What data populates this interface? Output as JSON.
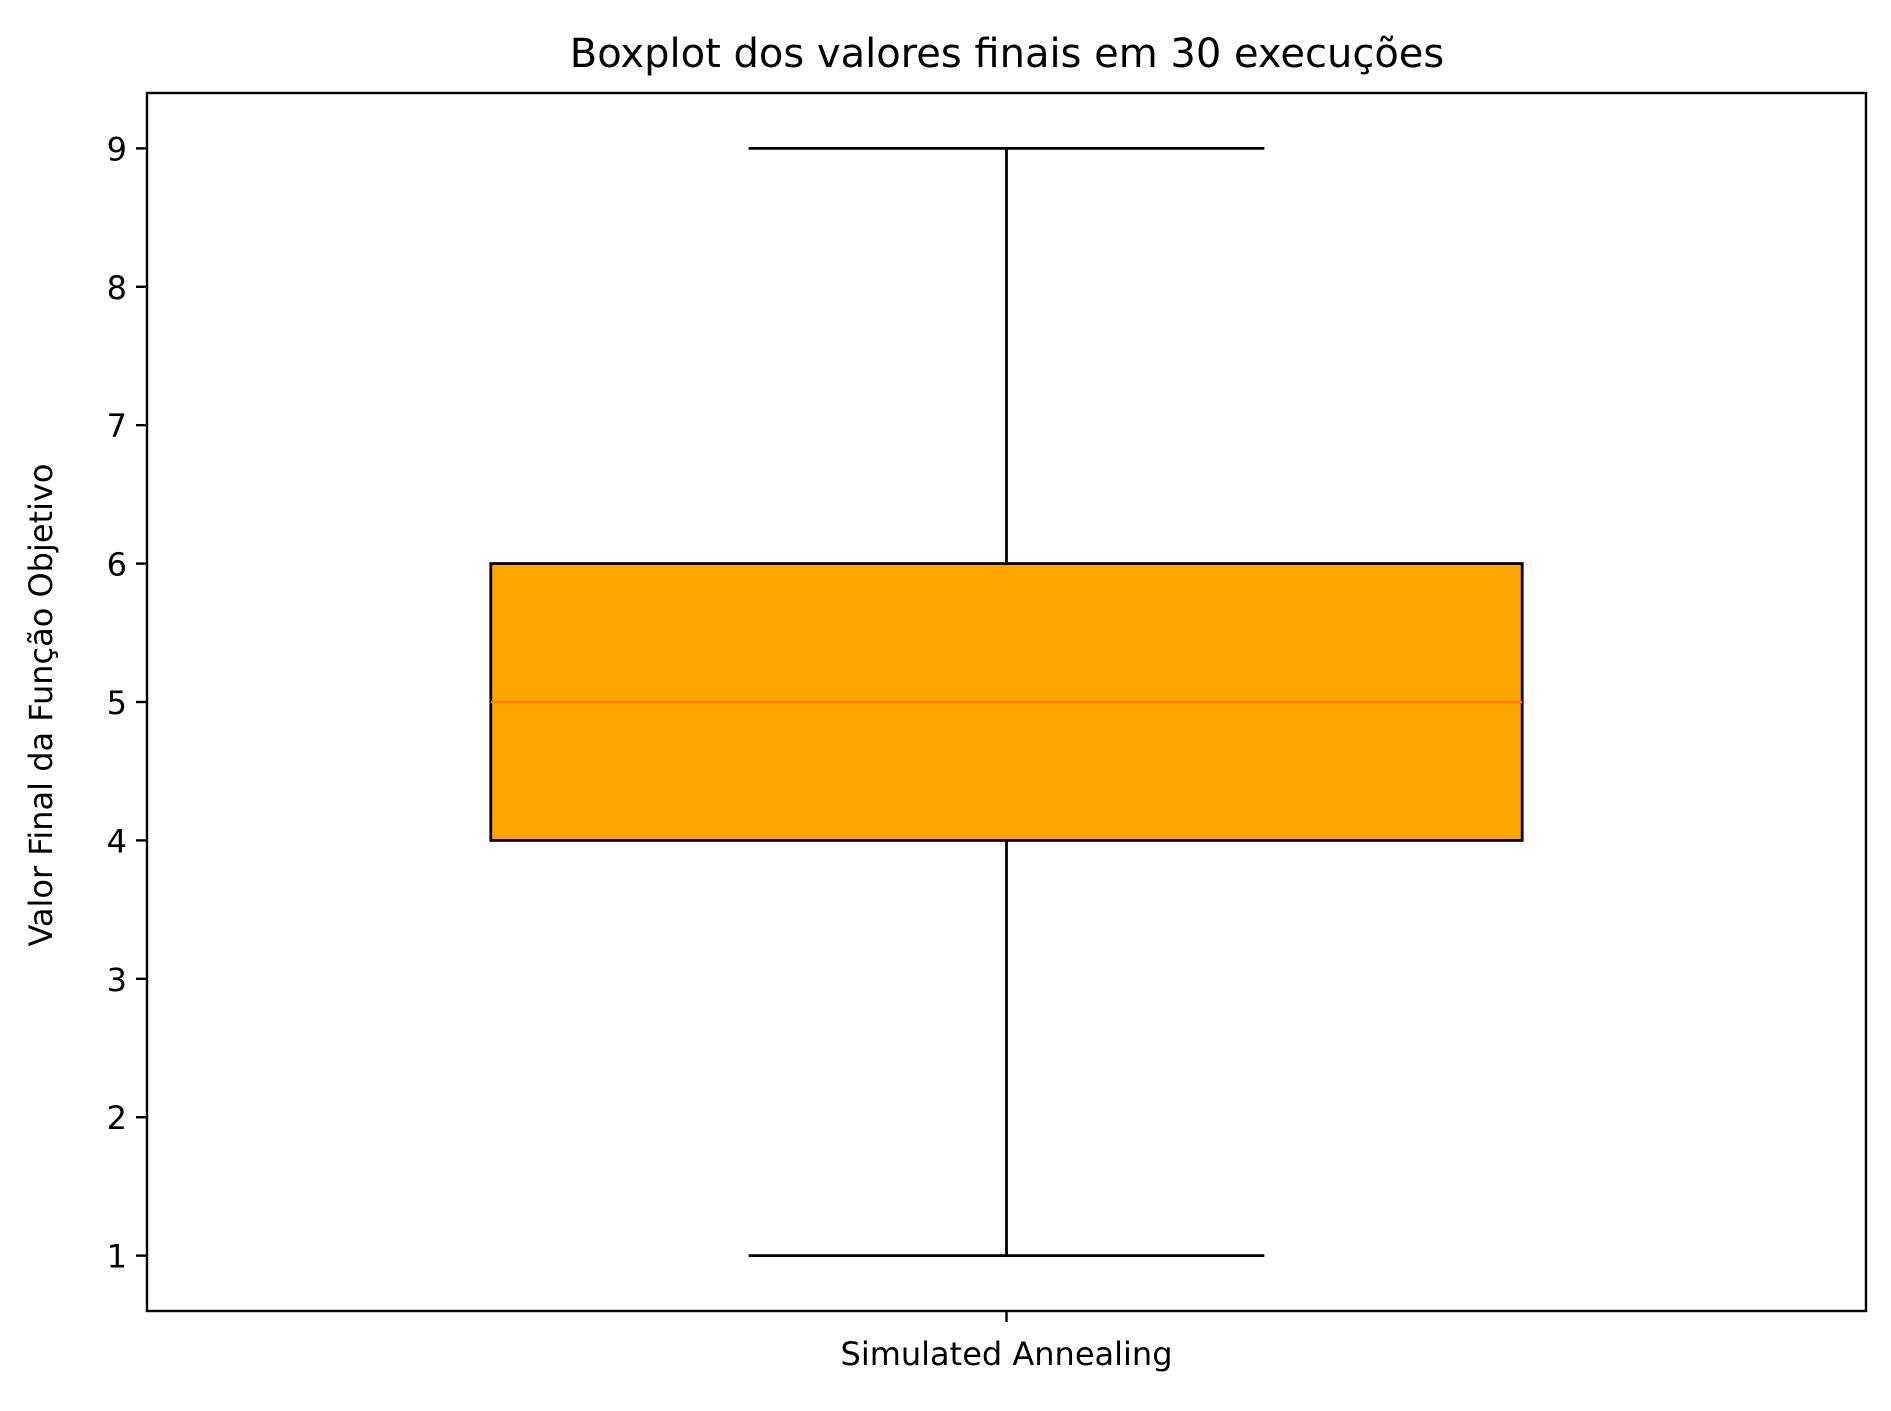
{
  "chart_data": {
    "type": "boxplot",
    "title": "Boxplot dos valores finais em 30 execuções",
    "xlabel": "",
    "ylabel": "Valor Final da Função Objetivo",
    "ylim": [
      0.6,
      9.4
    ],
    "yticks": [
      1,
      2,
      3,
      4,
      5,
      6,
      7,
      8,
      9
    ],
    "categories": [
      "Simulated Annealing"
    ],
    "boxes": [
      {
        "category": "Simulated Annealing",
        "whisker_low": 1,
        "q1": 4,
        "median": 5,
        "q3": 6,
        "whisker_high": 9
      }
    ],
    "grid": false,
    "legend": "none",
    "colors": {
      "box_fill": "#FFA500",
      "box_edge": "#000000",
      "median_line": "#FF7F0E",
      "whisker": "#000000"
    }
  }
}
